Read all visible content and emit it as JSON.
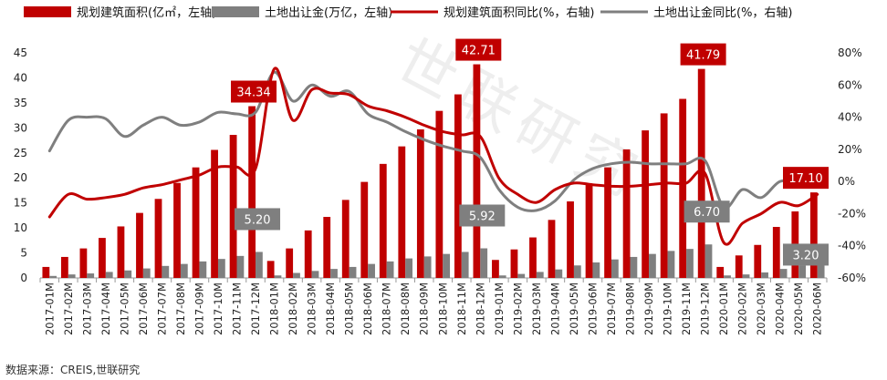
{
  "chart_data": {
    "type": "bar",
    "title": "",
    "source": "数据来源：CREIS,世联研究",
    "watermark": "世联研究",
    "colors": {
      "bar_area": "#C00000",
      "bar_land": "#7F7F7F",
      "line_area": "#C00000",
      "line_land": "#7F7F7F",
      "callout_area": "#C00000",
      "callout_land": "#7F7F7F"
    },
    "legend": [
      {
        "label": "规划建筑面积(亿㎡，左轴)",
        "kind": "bar",
        "color": "#C00000"
      },
      {
        "label": "土地出让金(万亿，左轴)",
        "kind": "bar",
        "color": "#7F7F7F"
      },
      {
        "label": "规划建筑面积同比(%，右轴)",
        "kind": "line",
        "color": "#C00000"
      },
      {
        "label": "土地出让金同比(%，右轴)",
        "kind": "line",
        "color": "#7F7F7F"
      }
    ],
    "legend_position": "top",
    "categories": [
      "2017-01M",
      "2017-02M",
      "2017-03M",
      "2017-04M",
      "2017-05M",
      "2017-06M",
      "2017-07M",
      "2017-08M",
      "2017-09M",
      "2017-10M",
      "2017-11M",
      "2017-12M",
      "2018-01M",
      "2018-02M",
      "2018-03M",
      "2018-04M",
      "2018-05M",
      "2018-06M",
      "2018-07M",
      "2018-08M",
      "2018-09M",
      "2018-10M",
      "2018-11M",
      "2018-12M",
      "2019-01M",
      "2019-02M",
      "2019-03M",
      "2019-04M",
      "2019-05M",
      "2019-06M",
      "2019-07M",
      "2019-08M",
      "2019-09M",
      "2019-10M",
      "2019-11M",
      "2019-12M",
      "2020-01M",
      "2020-02M",
      "2020-03M",
      "2020-04M",
      "2020-05M",
      "2020-06M"
    ],
    "y_left": {
      "min": 0,
      "max": 45,
      "ticks": [
        "0",
        "5",
        "10",
        "15",
        "20",
        "25",
        "30",
        "35",
        "40",
        "45"
      ]
    },
    "y_right": {
      "min": -60,
      "max": 80,
      "ticks": [
        "-60%",
        "-40%",
        "-20%",
        "0%",
        "20%",
        "40%",
        "60%",
        "80%"
      ]
    },
    "series": [
      {
        "name": "规划建筑面积(亿㎡，左轴)",
        "type": "bar",
        "axis": "left",
        "values": [
          2.2,
          4.2,
          5.9,
          8.0,
          10.3,
          13.0,
          15.8,
          19.0,
          22.1,
          25.6,
          28.6,
          34.34,
          3.4,
          5.9,
          9.5,
          12.2,
          15.6,
          19.2,
          22.8,
          26.3,
          29.7,
          33.4,
          36.7,
          42.71,
          3.6,
          5.7,
          8.1,
          11.6,
          15.3,
          18.8,
          22.1,
          25.7,
          29.5,
          32.9,
          35.8,
          41.79,
          2.2,
          4.5,
          6.6,
          10.2,
          13.3,
          17.1
        ]
      },
      {
        "name": "土地出让金(万亿，左轴)",
        "type": "bar",
        "axis": "left",
        "values": [
          0.4,
          0.7,
          0.9,
          1.2,
          1.5,
          1.9,
          2.4,
          2.8,
          3.3,
          3.8,
          4.4,
          5.2,
          0.5,
          1.0,
          1.4,
          1.8,
          2.2,
          2.8,
          3.3,
          3.9,
          4.3,
          4.8,
          5.2,
          5.92,
          0.5,
          0.8,
          1.2,
          1.7,
          2.5,
          3.1,
          3.7,
          4.2,
          4.8,
          5.4,
          5.8,
          6.7,
          0.5,
          0.7,
          1.1,
          1.8,
          2.5,
          3.2
        ]
      },
      {
        "name": "规划建筑面积同比(%，右轴)",
        "type": "line",
        "axis": "right",
        "values": [
          -22,
          -8,
          -11,
          -10,
          -8,
          -4,
          -2,
          1,
          4,
          9,
          9,
          8,
          70,
          38,
          57,
          55,
          54,
          47,
          44,
          40,
          35,
          31,
          29,
          28,
          2,
          -8,
          -13,
          -5,
          -1,
          -2,
          -3,
          -3,
          -2,
          -1,
          -1,
          5,
          -38,
          -26,
          -20,
          -13,
          -15,
          -8
        ]
      },
      {
        "name": "土地出让金同比(%，右轴)",
        "type": "line",
        "axis": "right",
        "values": [
          19,
          38,
          40,
          39,
          28,
          35,
          40,
          35,
          37,
          43,
          42,
          43,
          68,
          50,
          60,
          53,
          56,
          42,
          37,
          31,
          26,
          22,
          19,
          15,
          -5,
          -16,
          -18,
          -12,
          1,
          8,
          11,
          12,
          11,
          11,
          11,
          13,
          -16,
          -5,
          -10,
          0,
          -1,
          null
        ]
      }
    ],
    "callouts": [
      {
        "text": "34.34",
        "series": 0,
        "index": 11,
        "style": "area"
      },
      {
        "text": "42.71",
        "series": 0,
        "index": 23,
        "style": "area"
      },
      {
        "text": "41.79",
        "series": 0,
        "index": 35,
        "style": "area"
      },
      {
        "text": "17.10",
        "series": 0,
        "index": 41,
        "style": "area"
      },
      {
        "text": "5.20",
        "series": 1,
        "index": 11,
        "style": "land"
      },
      {
        "text": "5.92",
        "series": 1,
        "index": 23,
        "style": "land"
      },
      {
        "text": "6.70",
        "series": 1,
        "index": 35,
        "style": "land"
      },
      {
        "text": "3.20",
        "series": 1,
        "index": 41,
        "style": "land"
      }
    ]
  }
}
